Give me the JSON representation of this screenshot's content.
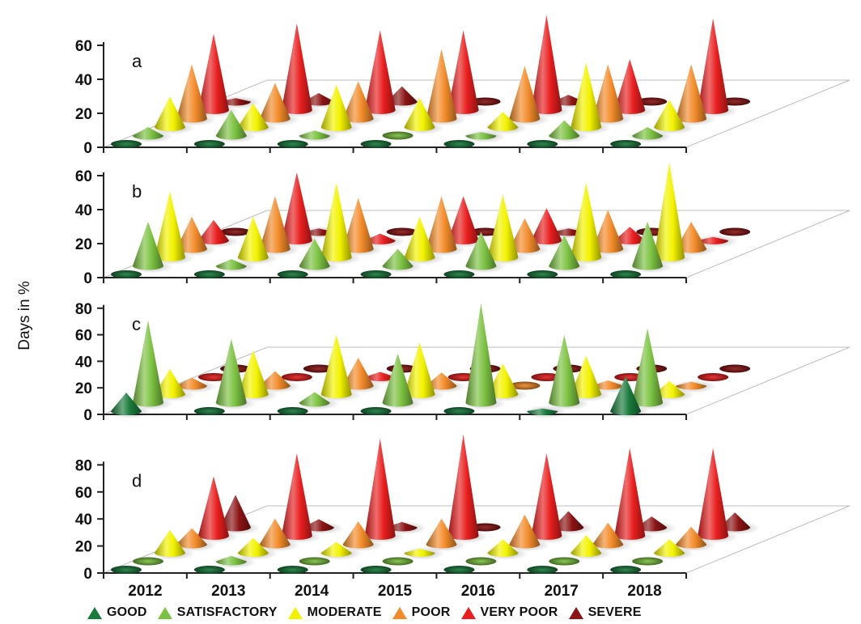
{
  "chart_data": {
    "type": "bar",
    "style": "3d-cone",
    "ylabel": "Days in %",
    "categories": [
      "2012",
      "2013",
      "2014",
      "2015",
      "2016",
      "2017",
      "2018"
    ],
    "legend_position": "bottom",
    "series_names": [
      "GOOD",
      "SATISFACTORY",
      "MODERATE",
      "POOR",
      "VERY POOR",
      "SEVERE"
    ],
    "series_colors": [
      "#1a7a3c",
      "#7cc242",
      "#f2f200",
      "#f28b2a",
      "#e81e1e",
      "#8b1414"
    ],
    "panels": [
      {
        "label": "a",
        "ylim": [
          0,
          60
        ],
        "yticks": [
          0,
          20,
          40,
          60
        ],
        "series": [
          {
            "name": "GOOD",
            "values": [
              0,
              0,
              0,
              0,
              0,
              0,
              0
            ]
          },
          {
            "name": "SATISFACTORY",
            "values": [
              5,
              15,
              3,
              1,
              2,
              9,
              5
            ]
          },
          {
            "name": "MODERATE",
            "values": [
              18,
              14,
              25,
              17,
              9,
              38,
              16
            ]
          },
          {
            "name": "POOR",
            "values": [
              32,
              21,
              22,
              41,
              31,
              32,
              32
            ]
          },
          {
            "name": "VERY POOR",
            "values": [
              45,
              51,
              47,
              47,
              56,
              30,
              54
            ]
          },
          {
            "name": "SEVERE",
            "values": [
              2,
              5,
              9,
              1,
              4,
              1,
              1
            ]
          }
        ]
      },
      {
        "label": "b",
        "ylim": [
          0,
          60
        ],
        "yticks": [
          0,
          20,
          40,
          60
        ],
        "series": [
          {
            "name": "GOOD",
            "values": [
              0,
              0,
              0,
              0,
              0,
              0,
              0
            ]
          },
          {
            "name": "SATISFACTORY",
            "values": [
              26,
              4,
              16,
              10,
              20,
              18,
              26
            ]
          },
          {
            "name": "MODERATE",
            "values": [
              39,
              24,
              44,
              24,
              37,
              44,
              56
            ]
          },
          {
            "name": "POOR",
            "values": [
              19,
              31,
              30,
              31,
              18,
              23,
              16
            ]
          },
          {
            "name": "VERY POOR",
            "values": [
              12,
              40,
              4,
              26,
              19,
              8,
              2
            ]
          },
          {
            "name": "SEVERE",
            "values": [
              1,
              2,
              1,
              1,
              2,
              1,
              1
            ]
          }
        ]
      },
      {
        "label": "c",
        "ylim": [
          0,
          80
        ],
        "yticks": [
          0,
          20,
          40,
          60,
          80
        ],
        "series": [
          {
            "name": "GOOD",
            "values": [
              14,
              0,
              0,
              0,
              0,
              2,
              26
            ]
          },
          {
            "name": "SATISFACTORY",
            "values": [
              62,
              48,
              8,
              37,
              75,
              51,
              56
            ]
          },
          {
            "name": "MODERATE",
            "values": [
              19,
              33,
              45,
              39,
              23,
              29,
              10
            ]
          },
          {
            "name": "POOR",
            "values": [
              6,
              11,
              21,
              10,
              1,
              4,
              3
            ]
          },
          {
            "name": "VERY POOR",
            "values": [
              1,
              1,
              4,
              1,
              1,
              1,
              1
            ]
          },
          {
            "name": "SEVERE",
            "values": [
              0,
              1,
              1,
              1,
              1,
              1,
              1
            ]
          }
        ]
      },
      {
        "label": "d",
        "ylim": [
          0,
          80
        ],
        "yticks": [
          0,
          20,
          40,
          60,
          80
        ],
        "series": [
          {
            "name": "GOOD",
            "values": [
              0,
              0,
              0,
              0,
              0,
              0,
              0
            ]
          },
          {
            "name": "SATISFACTORY",
            "values": [
              1,
              4,
              1,
              1,
              1,
              1,
              1
            ]
          },
          {
            "name": "MODERATE",
            "values": [
              17,
              11,
              8,
              3,
              10,
              13,
              10
            ]
          },
          {
            "name": "POOR",
            "values": [
              12,
              19,
              17,
              19,
              22,
              16,
              13
            ]
          },
          {
            "name": "VERY POOR",
            "values": [
              44,
              61,
              72,
              75,
              61,
              65,
              65
            ]
          },
          {
            "name": "SEVERE",
            "values": [
              24,
              6,
              4,
              1,
              12,
              8,
              11
            ]
          }
        ]
      }
    ]
  }
}
